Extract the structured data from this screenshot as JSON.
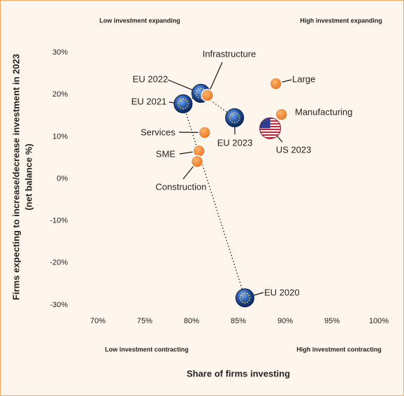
{
  "chart_data": {
    "type": "scatter",
    "x_label": "Share of firms investing",
    "y_label": "Firms expecting to increase/decrease investment in 2023",
    "y_label_sub": "(net balance %)",
    "annotations": [
      "Low investment expanding",
      "High investment expanding",
      "Low investment contracting",
      "High investment contracting"
    ],
    "xlim": [
      70,
      100
    ],
    "xticks": [
      {
        "value": 70,
        "label": "70%"
      },
      {
        "value": 75,
        "label": "75%"
      },
      {
        "value": 80,
        "label": "80%"
      },
      {
        "value": 85,
        "label": "85%"
      },
      {
        "value": 90,
        "label": "90%"
      },
      {
        "value": 95,
        "label": "95%"
      },
      {
        "value": 100,
        "label": "100%"
      }
    ],
    "ylim": [
      -32,
      33
    ],
    "yticks": [
      {
        "value": -30,
        "label": "-30%"
      },
      {
        "value": -20,
        "label": "-20%"
      },
      {
        "value": -10,
        "label": "-10%"
      },
      {
        "value": 0,
        "label": "0%"
      },
      {
        "value": 10,
        "label": "10%"
      },
      {
        "value": 20,
        "label": "20%"
      },
      {
        "value": 30,
        "label": "30%"
      }
    ],
    "series": [
      {
        "marker": "globe",
        "color": "#1d4c9c",
        "connected": true,
        "labels": [
          "EU 2020",
          "EU 2021",
          "EU 2022",
          "EU 2023"
        ],
        "x": [
          85.7,
          79.1,
          81.0,
          84.6
        ],
        "values": [
          -28.3,
          17.8,
          20.3,
          14.5
        ]
      },
      {
        "marker": "flag",
        "color": "#b22234",
        "labels": [
          "US 2023"
        ],
        "x": [
          88.4
        ],
        "values": [
          12.0
        ]
      },
      {
        "marker": "circle",
        "color": "#f0802a",
        "labels": [
          "Infrastructure",
          "Large",
          "Manufacturing",
          "Services",
          "SME",
          "Construction"
        ],
        "x": [
          81.7,
          89.0,
          89.6,
          81.4,
          80.8,
          80.6
        ],
        "values": [
          19.8,
          22.6,
          15.3,
          11.0,
          6.6,
          4.1
        ]
      }
    ]
  }
}
